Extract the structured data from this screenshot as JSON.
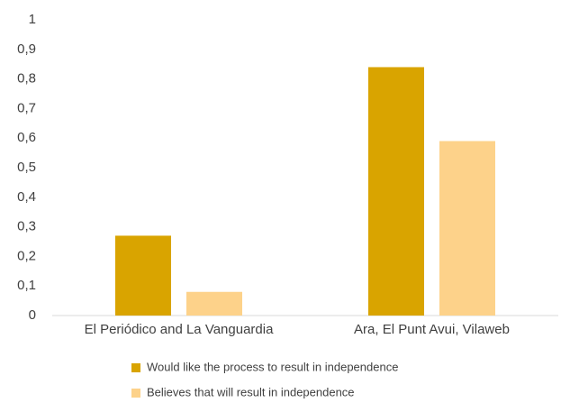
{
  "chart_data": {
    "type": "bar",
    "categories": [
      "El Periódico and La Vanguardia",
      "Ara, El Punt Avui, Vilaweb"
    ],
    "series": [
      {
        "name": "Would like the process to result in independence",
        "color": "#d9a400",
        "values": [
          0.27,
          0.84
        ]
      },
      {
        "name": "Believes that will result in independence",
        "color": "#fdd28a",
        "values": [
          0.08,
          0.59
        ]
      }
    ],
    "ylim": [
      0,
      1
    ],
    "yticks": [
      0,
      {
        "value": 0.1,
        "label": "0,1"
      },
      {
        "value": 0.2,
        "label": "0,2"
      },
      {
        "value": 0.3,
        "label": "0,3"
      },
      {
        "value": 0.4,
        "label": "0,4"
      },
      {
        "value": 0.5,
        "label": "0,5"
      },
      {
        "value": 0.6,
        "label": "0,6"
      },
      {
        "value": 0.7,
        "label": "0,7"
      },
      {
        "value": 0.8,
        "label": "0,8"
      },
      {
        "value": 0.9,
        "label": "0,9"
      },
      1
    ],
    "grid": false,
    "legend": "bottom"
  }
}
